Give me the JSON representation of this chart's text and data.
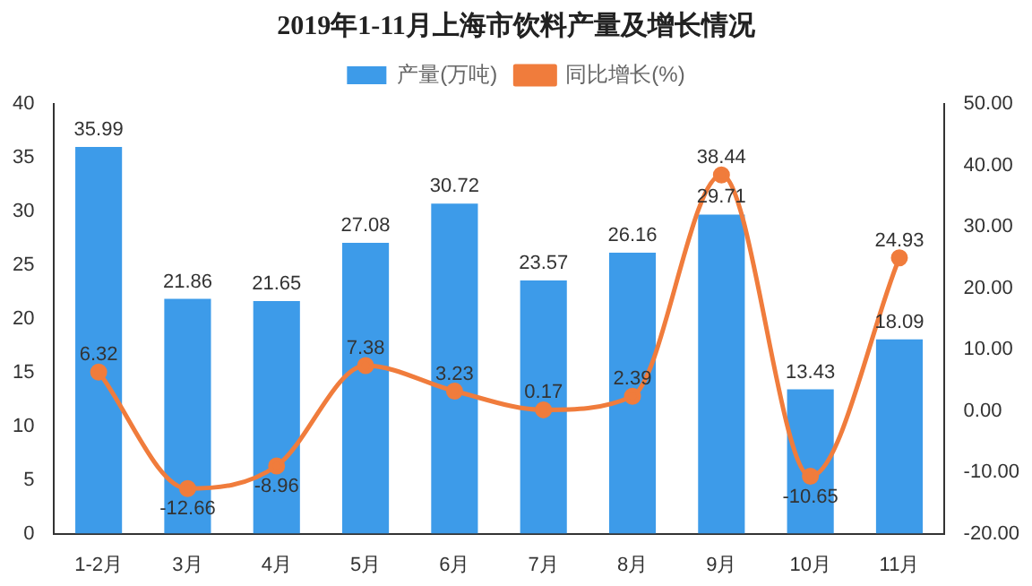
{
  "chart_data": {
    "type": "bar",
    "title": "2019年1-11月上海市饮料产量及增长情况",
    "categories": [
      "1-2月",
      "3月",
      "4月",
      "5月",
      "6月",
      "7月",
      "8月",
      "9月",
      "10月",
      "11月"
    ],
    "series": [
      {
        "name": "产量(万吨)",
        "color": "#3d9be9",
        "values": [
          35.99,
          21.86,
          21.65,
          27.08,
          30.72,
          23.57,
          26.16,
          29.71,
          13.43,
          18.09
        ]
      },
      {
        "name": "同比增长(%)",
        "type": "line",
        "axis": "y2",
        "color": "#f07c3c",
        "values": [
          6.32,
          -12.66,
          -8.96,
          7.38,
          3.23,
          0.17,
          2.39,
          38.44,
          -10.65,
          24.93
        ]
      }
    ],
    "ylim": [
      0,
      40
    ],
    "yticks": [
      0,
      5,
      10,
      15,
      20,
      25,
      30,
      35,
      40
    ],
    "y2lim": [
      -20,
      50
    ],
    "y2ticks": [
      {
        "value": -20,
        "label": "-20.00"
      },
      {
        "value": -10,
        "label": "-10.00"
      },
      {
        "value": 0,
        "label": "0.00"
      },
      {
        "value": 10,
        "label": "10.00"
      },
      {
        "value": 20,
        "label": "20.00"
      },
      {
        "value": 30,
        "label": "30.00"
      },
      {
        "value": 40,
        "label": "40.00"
      },
      {
        "value": 50,
        "label": "50.00"
      }
    ],
    "data_labels": true,
    "legend": "top",
    "grid": false,
    "marker": "circle",
    "line_style": "solid"
  }
}
